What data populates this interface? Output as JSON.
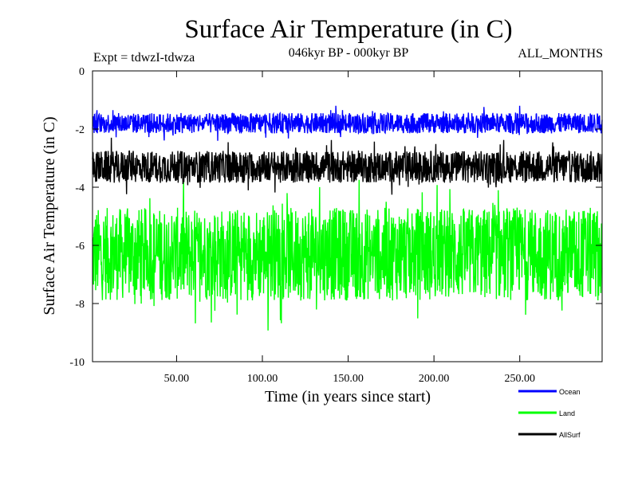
{
  "chart_data": {
    "type": "line",
    "title": "Surface Air Temperature (in C)",
    "subtitle": "046kyr BP - 000kyr BP",
    "left_note": "Expt = tdwzI-tdwza",
    "right_note": "ALL_MONTHS",
    "xlabel": "Time (in years since start)",
    "ylabel": "Surface Air Temperature (in C)",
    "xlim": [
      1,
      298
    ],
    "ylim": [
      -10,
      0
    ],
    "x_ticks": [
      50,
      100,
      150,
      200,
      250
    ],
    "x_tick_labels": [
      "50.00",
      "100.00",
      "150.00",
      "200.00",
      "250.00"
    ],
    "y_ticks": [
      0,
      -2,
      -4,
      -6,
      -8,
      -10
    ],
    "y_tick_labels": [
      "0",
      "-2",
      "-4",
      "-6",
      "-8",
      "-10"
    ],
    "grid": false,
    "legend_position": "bottom-right",
    "series": [
      {
        "name": "Ocean",
        "color": "#0000ff",
        "mean": -1.8,
        "spread": 0.35,
        "min": -2.6,
        "max": -1.2
      },
      {
        "name": "Land",
        "color": "#00ff00",
        "mean": -6.3,
        "spread": 1.6,
        "min": -9.7,
        "max": -3.4
      },
      {
        "name": "AllSurf",
        "color": "#000000",
        "mean": -3.3,
        "spread": 0.55,
        "min": -4.6,
        "max": -2.3
      }
    ]
  }
}
